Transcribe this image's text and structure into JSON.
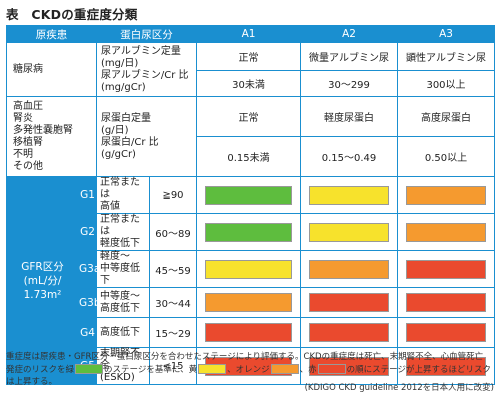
{
  "title": "表　CKDの重症度分類",
  "header": {
    "disease": "原疾患",
    "protein_category": "蛋白尿区分",
    "a1": "A1",
    "a2": "A2",
    "a3": "A3"
  },
  "diabetes": {
    "label": "糖尿病",
    "criteria_1": "尿アルブミン定量",
    "criteria_2": "(mg/日)",
    "criteria_3": "尿アルブミン/Cr 比",
    "criteria_4": "(mg/gCr)",
    "a1_name": "正常",
    "a2_name": "微量アルブミン尿",
    "a3_name": "顕性アルブミン尿",
    "a1_range": "30未満",
    "a2_range": "30〜299",
    "a3_range": "300以上"
  },
  "others": {
    "line_1": "高血圧",
    "line_2": "腎炎",
    "line_3": "多発性嚢胞腎",
    "line_4": "移植腎",
    "line_5": "不明",
    "line_6": "その他",
    "criteria_1": "尿蛋白定量",
    "criteria_2": "(g/日)",
    "criteria_3": "尿蛋白/Cr 比",
    "criteria_4": "(g/gCr)",
    "a1_name": "正常",
    "a2_name": "軽度尿蛋白",
    "a3_name": "高度尿蛋白",
    "a1_range": "0.15未満",
    "a2_range": "0.15〜0.49",
    "a3_range": "0.50以上"
  },
  "gfr": {
    "label_1": "GFR区分",
    "label_2": "(mL/分/",
    "label_3": "1.73m²",
    "rows": [
      {
        "code": "G1",
        "desc_1": "正常または",
        "desc_2": "高値",
        "value": "≧90",
        "colors": [
          "green",
          "yellow",
          "orange"
        ]
      },
      {
        "code": "G2",
        "desc_1": "正常または",
        "desc_2": "軽度低下",
        "value": "60〜89",
        "colors": [
          "green",
          "yellow",
          "orange"
        ]
      },
      {
        "code": "G3a",
        "desc_1": "軽度〜",
        "desc_2": "中等度低下",
        "value": "45〜59",
        "colors": [
          "yellow",
          "orange",
          "red"
        ]
      },
      {
        "code": "G3b",
        "desc_1": "中等度〜",
        "desc_2": "高度低下",
        "value": "30〜44",
        "colors": [
          "orange",
          "red",
          "red"
        ]
      },
      {
        "code": "G4",
        "desc_1": "高度低下",
        "desc_2": "",
        "value": "15〜29",
        "colors": [
          "red",
          "red",
          "red"
        ]
      },
      {
        "code": "G5",
        "desc_1": "末期腎不全",
        "desc_2": "(ESKD)",
        "value": "<15",
        "colors": [
          "red",
          "red",
          "red"
        ]
      }
    ]
  },
  "palette": {
    "green": "#5ebd3e",
    "yellow": "#f7e22c",
    "orange": "#f59a2f",
    "red": "#ea4a2e"
  },
  "note": {
    "line_1": "重症度は原疾患・GFR区分・蛋白尿区分を合わせたステージにより評価する。CKDの重症度は死亡、末期腎不全、心血管死亡",
    "line_2_a": "発症のリスクを緑",
    "line_2_b": "のステージを基準に、黄",
    "line_2_c": "、オレンジ",
    "line_2_d": "、赤",
    "line_2_e": "の順にステージが上昇するほどリスクは上昇する。"
  },
  "source": "(KDIGO CKD guideline 2012を日本人用に改変)"
}
